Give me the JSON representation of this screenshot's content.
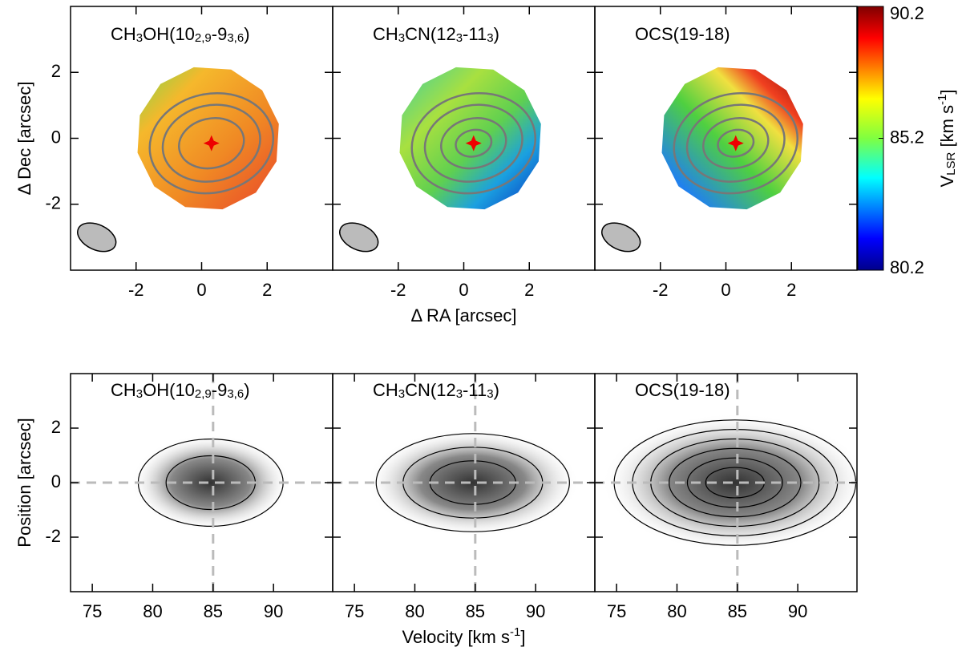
{
  "chart_data": [
    {
      "type": "velocity-map",
      "title": [
        {
          "text": "CH"
        },
        {
          "sub": "3"
        },
        {
          "text": "OH(10"
        },
        {
          "sub": "2,9"
        },
        {
          "text": "-9"
        },
        {
          "sub": "3,6"
        },
        {
          "text": ")"
        }
      ],
      "xlim": [
        -4,
        4
      ],
      "ylim": [
        -4,
        4
      ],
      "xticks": [
        -2,
        0,
        2
      ],
      "yticks": [
        -2,
        0,
        2
      ],
      "ylabel": "Δ Dec [arcsec]",
      "marker": [
        0.3,
        -0.15
      ]
    },
    {
      "type": "velocity-map",
      "title": [
        {
          "text": "CH"
        },
        {
          "sub": "3"
        },
        {
          "text": "CN(12"
        },
        {
          "sub": "3"
        },
        {
          "text": "-11"
        },
        {
          "sub": "3"
        },
        {
          "text": ")"
        }
      ],
      "xlim": [
        -4,
        4
      ],
      "ylim": [
        -4,
        4
      ],
      "xticks": [
        -2,
        0,
        2
      ],
      "xlabel": "Δ RA [arcsec]",
      "marker": [
        0.3,
        -0.15
      ]
    },
    {
      "type": "velocity-map",
      "title": [
        {
          "text": "OCS(19-18)"
        }
      ],
      "xlim": [
        -4,
        4
      ],
      "ylim": [
        -4,
        4
      ],
      "xticks": [
        -2,
        0,
        2
      ],
      "marker": [
        0.3,
        -0.15
      ],
      "colorbar": {
        "lim": [
          80.2,
          90.2
        ],
        "ticks": [
          80.2,
          85.2,
          90.2
        ],
        "label": [
          {
            "text": "V"
          },
          {
            "sub": "LSR"
          },
          {
            "text": " [km s"
          },
          {
            "sup": "-1"
          },
          {
            "text": "]"
          }
        ]
      }
    },
    {
      "type": "pv-diagram",
      "title": [
        {
          "text": "CH"
        },
        {
          "sub": "3"
        },
        {
          "text": "OH(10"
        },
        {
          "sub": "2,9"
        },
        {
          "text": "-9"
        },
        {
          "sub": "3,6"
        },
        {
          "text": ")"
        }
      ],
      "xlim": [
        73.2,
        94.9
      ],
      "ylim": [
        -4,
        4
      ],
      "xticks": [
        75,
        80,
        85,
        90
      ],
      "yticks": [
        -2,
        0,
        2
      ],
      "ylabel": "Position [arcsec]",
      "vline": 85,
      "hline": 0
    },
    {
      "type": "pv-diagram",
      "title": [
        {
          "text": "CH"
        },
        {
          "sub": "3"
        },
        {
          "text": "CN(12"
        },
        {
          "sub": "3"
        },
        {
          "text": "-11"
        },
        {
          "sub": "3"
        },
        {
          "text": ")"
        }
      ],
      "xlim": [
        73.2,
        94.9
      ],
      "ylim": [
        -4,
        4
      ],
      "xticks": [
        75,
        80,
        85,
        90
      ],
      "xlabel": [
        {
          "text": "Velocity [km s"
        },
        {
          "sup": "-1"
        },
        {
          "text": "]"
        }
      ],
      "vline": 85,
      "hline": 0
    },
    {
      "type": "pv-diagram",
      "title": [
        {
          "text": "OCS(19-18)"
        }
      ],
      "xlim": [
        73.2,
        94.9
      ],
      "ylim": [
        -4,
        4
      ],
      "xticks": [
        75,
        80,
        85,
        90
      ],
      "vline": 85,
      "hline": 0
    }
  ]
}
